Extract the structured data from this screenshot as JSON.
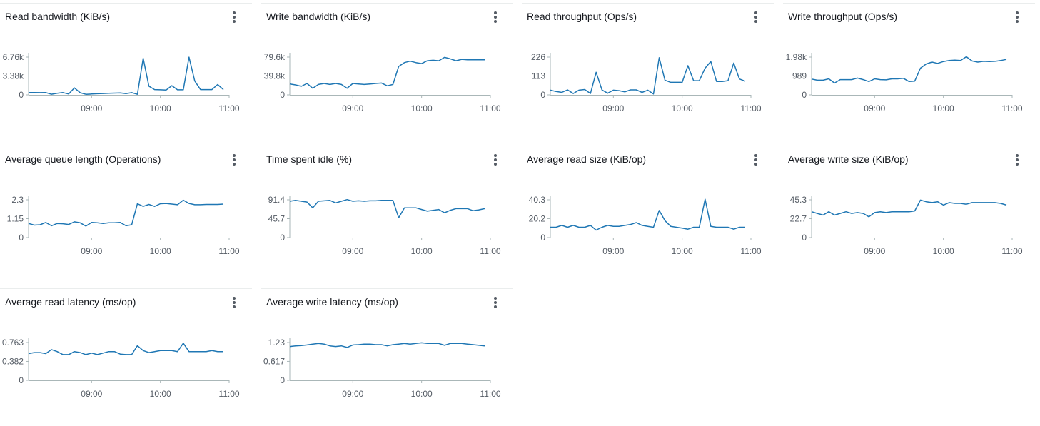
{
  "series_color": "#1f77b4",
  "chart_data": [
    {
      "type": "line",
      "title": "Read bandwidth (KiB/s)",
      "x_ticks": [
        "09:00",
        "10:00",
        "11:00"
      ],
      "x_range": [
        "08:05",
        "11:00"
      ],
      "y_ticks": [
        "0",
        "3.38k",
        "6.76k"
      ],
      "y_tick_values": [
        0,
        3380,
        6760
      ],
      "ylim": [
        0,
        6760
      ],
      "series": [
        {
          "x": [
            "08:05",
            "08:10",
            "08:15",
            "08:20",
            "08:25",
            "08:30",
            "08:35",
            "08:40",
            "08:45",
            "08:50",
            "08:55",
            "09:00",
            "09:05",
            "09:10",
            "09:15",
            "09:20",
            "09:25",
            "09:30",
            "09:35",
            "09:40",
            "09:45",
            "09:50",
            "09:55",
            "10:00",
            "10:05",
            "10:10",
            "10:15",
            "10:20",
            "10:25",
            "10:30",
            "10:35",
            "10:40",
            "10:45",
            "10:50",
            "10:55"
          ],
          "values": [
            410,
            420,
            400,
            410,
            120,
            280,
            410,
            150,
            1250,
            380,
            100,
            150,
            200,
            240,
            280,
            320,
            340,
            230,
            400,
            100,
            6550,
            1550,
            950,
            900,
            850,
            1650,
            900,
            900,
            6750,
            2500,
            950,
            950,
            950,
            1850,
            950
          ]
        }
      ]
    },
    {
      "type": "line",
      "title": "Write bandwidth (KiB/s)",
      "x_ticks": [
        "09:00",
        "10:00",
        "11:00"
      ],
      "x_range": [
        "08:05",
        "11:00"
      ],
      "y_ticks": [
        "0",
        "39.8k",
        "79.6k"
      ],
      "y_tick_values": [
        0,
        39800,
        79600
      ],
      "ylim": [
        0,
        79600
      ],
      "series": [
        {
          "x": [
            "08:05",
            "08:10",
            "08:15",
            "08:20",
            "08:25",
            "08:30",
            "08:35",
            "08:40",
            "08:45",
            "08:50",
            "08:55",
            "09:00",
            "09:05",
            "09:10",
            "09:15",
            "09:20",
            "09:25",
            "09:30",
            "09:35",
            "09:40",
            "09:45",
            "09:50",
            "09:55",
            "10:00",
            "10:05",
            "10:10",
            "10:15",
            "10:20",
            "10:25",
            "10:30",
            "10:35",
            "10:40",
            "10:45",
            "10:50",
            "10:55"
          ],
          "values": [
            23000,
            21000,
            18000,
            24000,
            14000,
            22000,
            24000,
            22000,
            24000,
            22000,
            14000,
            24000,
            23000,
            22000,
            23000,
            24000,
            25000,
            19000,
            22000,
            60000,
            68000,
            71000,
            68000,
            66000,
            72000,
            73000,
            72000,
            79000,
            76000,
            72000,
            75000,
            74000,
            74000,
            74000,
            74000
          ]
        }
      ]
    },
    {
      "type": "line",
      "title": "Read throughput (Ops/s)",
      "x_ticks": [
        "09:00",
        "10:00",
        "11:00"
      ],
      "x_range": [
        "08:05",
        "11:00"
      ],
      "y_ticks": [
        "0",
        "113",
        "226"
      ],
      "y_tick_values": [
        0,
        113,
        226
      ],
      "ylim": [
        0,
        226
      ],
      "series": [
        {
          "x": [
            "08:05",
            "08:10",
            "08:15",
            "08:20",
            "08:25",
            "08:30",
            "08:35",
            "08:40",
            "08:45",
            "08:50",
            "08:55",
            "09:00",
            "09:05",
            "09:10",
            "09:15",
            "09:20",
            "09:25",
            "09:30",
            "09:35",
            "09:40",
            "09:45",
            "09:50",
            "09:55",
            "10:00",
            "10:05",
            "10:10",
            "10:15",
            "10:20",
            "10:25",
            "10:30",
            "10:35",
            "10:40",
            "10:45",
            "10:50",
            "10:55"
          ],
          "values": [
            28,
            20,
            15,
            30,
            8,
            28,
            32,
            8,
            135,
            30,
            10,
            28,
            25,
            18,
            30,
            30,
            15,
            28,
            5,
            222,
            88,
            75,
            75,
            75,
            175,
            85,
            85,
            160,
            200,
            80,
            80,
            85,
            190,
            95,
            82
          ]
        }
      ]
    },
    {
      "type": "line",
      "title": "Write throughput (Ops/s)",
      "x_ticks": [
        "09:00",
        "10:00",
        "11:00"
      ],
      "x_range": [
        "08:05",
        "11:00"
      ],
      "y_ticks": [
        "0",
        "989",
        "1.98k"
      ],
      "y_tick_values": [
        0,
        989,
        1980
      ],
      "ylim": [
        0,
        1980
      ],
      "series": [
        {
          "x": [
            "08:05",
            "08:10",
            "08:15",
            "08:20",
            "08:25",
            "08:30",
            "08:35",
            "08:40",
            "08:45",
            "08:50",
            "08:55",
            "09:00",
            "09:05",
            "09:10",
            "09:15",
            "09:20",
            "09:25",
            "09:30",
            "09:35",
            "09:40",
            "09:45",
            "09:50",
            "09:55",
            "10:00",
            "10:05",
            "10:10",
            "10:15",
            "10:20",
            "10:25",
            "10:30",
            "10:35",
            "10:40",
            "10:45",
            "10:50",
            "10:55"
          ],
          "values": [
            830,
            770,
            770,
            840,
            620,
            800,
            800,
            800,
            880,
            800,
            700,
            840,
            800,
            790,
            840,
            840,
            870,
            700,
            720,
            1400,
            1620,
            1720,
            1650,
            1750,
            1800,
            1820,
            1800,
            2000,
            1780,
            1720,
            1760,
            1750,
            1760,
            1800,
            1860
          ]
        }
      ]
    },
    {
      "type": "line",
      "title": "Average queue length (Operations)",
      "x_ticks": [
        "09:00",
        "10:00",
        "11:00"
      ],
      "x_range": [
        "08:05",
        "11:00"
      ],
      "y_ticks": [
        "0",
        "1.15",
        "2.3"
      ],
      "y_tick_values": [
        0,
        1.15,
        2.3
      ],
      "ylim": [
        0,
        2.3
      ],
      "series": [
        {
          "x": [
            "08:05",
            "08:10",
            "08:15",
            "08:20",
            "08:25",
            "08:30",
            "08:35",
            "08:40",
            "08:45",
            "08:50",
            "08:55",
            "09:00",
            "09:05",
            "09:10",
            "09:15",
            "09:20",
            "09:25",
            "09:30",
            "09:35",
            "09:40",
            "09:45",
            "09:50",
            "09:55",
            "10:00",
            "10:05",
            "10:10",
            "10:15",
            "10:20",
            "10:25",
            "10:30",
            "10:35",
            "10:40",
            "10:45",
            "10:50",
            "10:55"
          ],
          "values": [
            0.86,
            0.76,
            0.78,
            0.92,
            0.72,
            0.86,
            0.84,
            0.8,
            0.96,
            0.9,
            0.7,
            0.92,
            0.9,
            0.86,
            0.9,
            0.9,
            0.92,
            0.72,
            0.78,
            2.06,
            1.9,
            2.02,
            1.9,
            2.06,
            2.08,
            2.04,
            2.0,
            2.28,
            2.08,
            2.0,
            2.0,
            2.02,
            2.02,
            2.02,
            2.04
          ]
        }
      ]
    },
    {
      "type": "line",
      "title": "Time spent idle (%)",
      "x_ticks": [
        "09:00",
        "10:00",
        "11:00"
      ],
      "x_range": [
        "08:05",
        "11:00"
      ],
      "y_ticks": [
        "0",
        "45.7",
        "91.4"
      ],
      "y_tick_values": [
        0,
        45.7,
        91.4
      ],
      "ylim": [
        0,
        91.4
      ],
      "series": [
        {
          "x": [
            "08:05",
            "08:10",
            "08:15",
            "08:20",
            "08:25",
            "08:30",
            "08:35",
            "08:40",
            "08:45",
            "08:50",
            "08:55",
            "09:00",
            "09:05",
            "09:10",
            "09:15",
            "09:20",
            "09:25",
            "09:30",
            "09:35",
            "09:40",
            "09:45",
            "09:50",
            "09:55",
            "10:00",
            "10:05",
            "10:10",
            "10:15",
            "10:20",
            "10:25",
            "10:30",
            "10:35",
            "10:40",
            "10:45",
            "10:50",
            "10:55"
          ],
          "values": [
            88,
            90,
            88,
            86,
            72,
            88,
            89,
            90,
            84,
            88,
            92,
            88,
            89,
            88,
            89,
            89,
            90,
            90,
            90,
            48,
            72,
            72,
            72,
            68,
            64,
            66,
            68,
            60,
            66,
            70,
            70,
            70,
            65,
            67,
            70
          ]
        }
      ]
    },
    {
      "type": "line",
      "title": "Average read size (KiB/op)",
      "x_ticks": [
        "09:00",
        "10:00",
        "11:00"
      ],
      "x_range": [
        "08:05",
        "11:00"
      ],
      "y_ticks": [
        "0",
        "20.2",
        "40.3"
      ],
      "y_tick_values": [
        0,
        20.2,
        40.3
      ],
      "ylim": [
        0,
        40.3
      ],
      "series": [
        {
          "x": [
            "08:05",
            "08:10",
            "08:15",
            "08:20",
            "08:25",
            "08:30",
            "08:35",
            "08:40",
            "08:45",
            "08:50",
            "08:55",
            "09:00",
            "09:05",
            "09:10",
            "09:15",
            "09:20",
            "09:25",
            "09:30",
            "09:35",
            "09:40",
            "09:45",
            "09:50",
            "09:55",
            "10:00",
            "10:05",
            "10:10",
            "10:15",
            "10:20",
            "10:25",
            "10:30",
            "10:35",
            "10:40",
            "10:45",
            "10:50",
            "10:55"
          ],
          "values": [
            11,
            11,
            13,
            11,
            13,
            11,
            11,
            13,
            8,
            11,
            13,
            12,
            12,
            13,
            14,
            16,
            13,
            12,
            11,
            29,
            18,
            12,
            11,
            10,
            9,
            11,
            11,
            41,
            12,
            11,
            11,
            11,
            9,
            11,
            11
          ]
        }
      ]
    },
    {
      "type": "line",
      "title": "Average write size (KiB/op)",
      "x_ticks": [
        "09:00",
        "10:00",
        "11:00"
      ],
      "x_range": [
        "08:05",
        "11:00"
      ],
      "y_ticks": [
        "0",
        "22.7",
        "45.3"
      ],
      "y_tick_values": [
        0,
        22.7,
        45.3
      ],
      "ylim": [
        0,
        45.3
      ],
      "series": [
        {
          "x": [
            "08:05",
            "08:10",
            "08:15",
            "08:20",
            "08:25",
            "08:30",
            "08:35",
            "08:40",
            "08:45",
            "08:50",
            "08:55",
            "09:00",
            "09:05",
            "09:10",
            "09:15",
            "09:20",
            "09:25",
            "09:30",
            "09:35",
            "09:40",
            "09:45",
            "09:50",
            "09:55",
            "10:00",
            "10:05",
            "10:10",
            "10:15",
            "10:20",
            "10:25",
            "10:30",
            "10:35",
            "10:40",
            "10:45",
            "10:50",
            "10:55"
          ],
          "values": [
            31,
            29,
            27,
            31,
            27,
            29,
            31,
            29,
            30,
            29,
            25,
            30,
            31,
            30,
            31,
            31,
            31,
            31,
            32,
            45,
            43,
            42,
            43,
            39,
            42,
            41,
            41,
            40,
            42,
            42,
            42,
            42,
            42,
            41,
            39
          ]
        }
      ]
    },
    {
      "type": "line",
      "title": "Average read latency (ms/op)",
      "x_ticks": [
        "09:00",
        "10:00",
        "11:00"
      ],
      "x_range": [
        "08:05",
        "11:00"
      ],
      "y_ticks": [
        "0",
        "0.382",
        "0.763"
      ],
      "y_tick_values": [
        0,
        0.382,
        0.763
      ],
      "ylim": [
        0,
        0.763
      ],
      "series": [
        {
          "x": [
            "08:05",
            "08:10",
            "08:15",
            "08:20",
            "08:25",
            "08:30",
            "08:35",
            "08:40",
            "08:45",
            "08:50",
            "08:55",
            "09:00",
            "09:05",
            "09:10",
            "09:15",
            "09:20",
            "09:25",
            "09:30",
            "09:35",
            "09:40",
            "09:45",
            "09:50",
            "09:55",
            "10:00",
            "10:05",
            "10:10",
            "10:15",
            "10:20",
            "10:25",
            "10:30",
            "10:35",
            "10:40",
            "10:45",
            "10:50",
            "10:55"
          ],
          "values": [
            0.54,
            0.56,
            0.56,
            0.54,
            0.62,
            0.58,
            0.52,
            0.52,
            0.58,
            0.56,
            0.52,
            0.55,
            0.52,
            0.55,
            0.58,
            0.58,
            0.53,
            0.52,
            0.52,
            0.7,
            0.6,
            0.56,
            0.58,
            0.6,
            0.6,
            0.6,
            0.58,
            0.75,
            0.58,
            0.58,
            0.58,
            0.58,
            0.6,
            0.58,
            0.58
          ]
        }
      ]
    },
    {
      "type": "line",
      "title": "Average write latency (ms/op)",
      "x_ticks": [
        "09:00",
        "10:00",
        "11:00"
      ],
      "x_range": [
        "08:05",
        "11:00"
      ],
      "y_ticks": [
        "0",
        "0.617",
        "1.23"
      ],
      "y_tick_values": [
        0,
        0.617,
        1.23
      ],
      "ylim": [
        0,
        1.23
      ],
      "series": [
        {
          "x": [
            "08:05",
            "08:10",
            "08:15",
            "08:20",
            "08:25",
            "08:30",
            "08:35",
            "08:40",
            "08:45",
            "08:50",
            "08:55",
            "09:00",
            "09:05",
            "09:10",
            "09:15",
            "09:20",
            "09:25",
            "09:30",
            "09:35",
            "09:40",
            "09:45",
            "09:50",
            "09:55",
            "10:00",
            "10:05",
            "10:10",
            "10:15",
            "10:20",
            "10:25",
            "10:30",
            "10:35",
            "10:40",
            "10:45",
            "10:50",
            "10:55"
          ],
          "values": [
            1.1,
            1.12,
            1.13,
            1.15,
            1.18,
            1.2,
            1.18,
            1.12,
            1.1,
            1.12,
            1.07,
            1.15,
            1.16,
            1.18,
            1.18,
            1.16,
            1.16,
            1.12,
            1.16,
            1.18,
            1.2,
            1.18,
            1.2,
            1.22,
            1.2,
            1.2,
            1.2,
            1.14,
            1.2,
            1.2,
            1.2,
            1.18,
            1.16,
            1.14,
            1.12
          ]
        }
      ]
    }
  ]
}
